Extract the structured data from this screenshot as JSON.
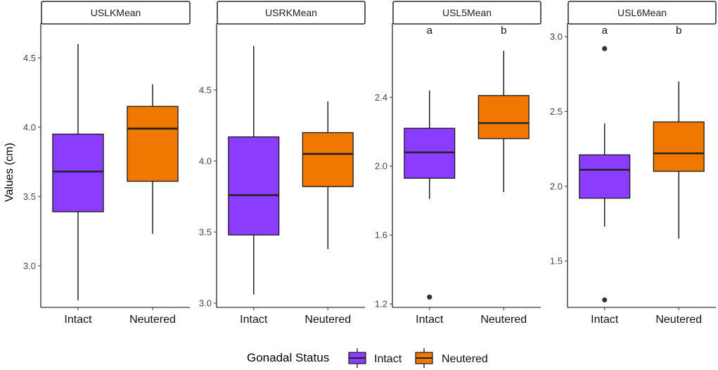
{
  "ylabel": "Values (cm)",
  "legend": {
    "title": "Gonadal Status",
    "entries": [
      {
        "label": "Intact",
        "color": "#8C3CFF"
      },
      {
        "label": "Neutered",
        "color": "#F07800"
      }
    ]
  },
  "chart_data": [
    {
      "type": "boxplot",
      "title": "USLKMean",
      "categories": [
        "Intact",
        "Neutered"
      ],
      "ylim": [
        2.7,
        4.75
      ],
      "yticks": [
        3.0,
        3.5,
        4.0,
        4.5
      ],
      "tick_labels": [
        "3.0",
        "3.5",
        "4.0",
        "4.5"
      ],
      "boxes": [
        {
          "whisker_low": 2.75,
          "q1": 3.39,
          "median": 3.68,
          "q3": 3.95,
          "whisker_high": 4.6,
          "outliers": []
        },
        {
          "whisker_low": 3.23,
          "q1": 3.61,
          "median": 3.99,
          "q3": 4.15,
          "whisker_high": 4.31,
          "outliers": []
        }
      ],
      "annotations": []
    },
    {
      "type": "boxplot",
      "title": "USRKMean",
      "categories": [
        "Intact",
        "Neutered"
      ],
      "ylim": [
        2.97,
        4.97
      ],
      "yticks": [
        3.0,
        3.5,
        4.0,
        4.5
      ],
      "tick_labels": [
        "3.0",
        "3.5",
        "4.0",
        "4.5"
      ],
      "boxes": [
        {
          "whisker_low": 3.06,
          "q1": 3.48,
          "median": 3.76,
          "q3": 4.17,
          "whisker_high": 4.81,
          "outliers": []
        },
        {
          "whisker_low": 3.38,
          "q1": 3.82,
          "median": 4.05,
          "q3": 4.2,
          "whisker_high": 4.42,
          "outliers": []
        }
      ],
      "annotations": []
    },
    {
      "type": "boxplot",
      "title": "USL5Mean",
      "categories": [
        "Intact",
        "Neutered"
      ],
      "ylim": [
        1.18,
        2.83
      ],
      "yticks": [
        1.2,
        1.6,
        2.0,
        2.4
      ],
      "tick_labels": [
        "1.2",
        "1.6",
        "2.0",
        "2.4"
      ],
      "boxes": [
        {
          "whisker_low": 1.81,
          "q1": 1.93,
          "median": 2.08,
          "q3": 2.22,
          "whisker_high": 2.44,
          "outliers": [
            1.24
          ]
        },
        {
          "whisker_low": 1.85,
          "q1": 2.16,
          "median": 2.25,
          "q3": 2.41,
          "whisker_high": 2.67,
          "outliers": []
        }
      ],
      "annotations": [
        "a",
        "b"
      ]
    },
    {
      "type": "boxplot",
      "title": "USL6Mean",
      "categories": [
        "Intact",
        "Neutered"
      ],
      "ylim": [
        1.19,
        3.09
      ],
      "yticks": [
        1.5,
        2.0,
        2.5,
        3.0
      ],
      "tick_labels": [
        "1.5",
        "2.0",
        "2.5",
        "3.0"
      ],
      "boxes": [
        {
          "whisker_low": 1.73,
          "q1": 1.92,
          "median": 2.11,
          "q3": 2.21,
          "whisker_high": 2.42,
          "outliers": [
            1.24,
            2.92
          ]
        },
        {
          "whisker_low": 1.65,
          "q1": 2.1,
          "median": 2.22,
          "q3": 2.43,
          "whisker_high": 2.7,
          "outliers": []
        }
      ],
      "annotations": [
        "a",
        "b"
      ]
    }
  ]
}
